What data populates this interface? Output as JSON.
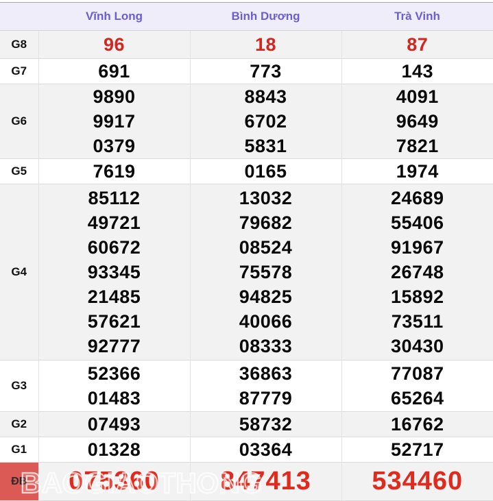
{
  "table": {
    "columns": [
      "Vĩnh Long",
      "Bình Dương",
      "Trà Vinh"
    ],
    "rows": [
      {
        "id": "G8",
        "label": "G8",
        "shade": "gray",
        "type": "g8",
        "values": [
          [
            "96"
          ],
          [
            "18"
          ],
          [
            "87"
          ]
        ]
      },
      {
        "id": "G7",
        "label": "G7",
        "shade": "white",
        "type": "normal",
        "values": [
          [
            "691"
          ],
          [
            "773"
          ],
          [
            "143"
          ]
        ]
      },
      {
        "id": "G6",
        "label": "G6",
        "shade": "gray",
        "type": "normal",
        "values": [
          [
            "9890",
            "9917",
            "0379"
          ],
          [
            "8843",
            "6702",
            "5831"
          ],
          [
            "4091",
            "9649",
            "7821"
          ]
        ]
      },
      {
        "id": "G5",
        "label": "G5",
        "shade": "white",
        "type": "normal",
        "values": [
          [
            "7619"
          ],
          [
            "0165"
          ],
          [
            "1974"
          ]
        ]
      },
      {
        "id": "G4",
        "label": "G4",
        "shade": "gray",
        "type": "g4",
        "values": [
          [
            "85112",
            "49721",
            "60672",
            "93345",
            "21485",
            "57621",
            "92777"
          ],
          [
            "13032",
            "79682",
            "08524",
            "75578",
            "94825",
            "40066",
            "08333"
          ],
          [
            "24689",
            "55406",
            "91967",
            "26748",
            "15892",
            "73511",
            "30430"
          ]
        ]
      },
      {
        "id": "G3",
        "label": "G3",
        "shade": "white",
        "type": "g3",
        "values": [
          [
            "52366",
            "01483"
          ],
          [
            "36863",
            "87779"
          ],
          [
            "77087",
            "65264"
          ]
        ]
      },
      {
        "id": "G2",
        "label": "G2",
        "shade": "gray",
        "type": "normal",
        "values": [
          [
            "07493"
          ],
          [
            "58732"
          ],
          [
            "16762"
          ]
        ]
      },
      {
        "id": "G1",
        "label": "G1",
        "shade": "white",
        "type": "normal",
        "values": [
          [
            "01328"
          ],
          [
            "03364"
          ],
          [
            "52717"
          ]
        ]
      },
      {
        "id": "DB",
        "label": "ĐB",
        "shade": "gray",
        "type": "jackpot",
        "values": [
          [
            "075360"
          ],
          [
            "847413"
          ],
          [
            "534460"
          ]
        ]
      }
    ]
  },
  "watermark": {
    "text": "BAOGIAOTHONG"
  },
  "colors": {
    "accent_purple": "#6C5ECF",
    "header_bg": "#EFEDFA",
    "row_alt_bg": "#F2F2F2",
    "g8_red": "#D2261F",
    "jackpot_red": "#E02A1D",
    "jackpot_cell_bg": "#DC5A55",
    "border_v": "#E2E2E2",
    "border_h": "#DBDBDB"
  }
}
